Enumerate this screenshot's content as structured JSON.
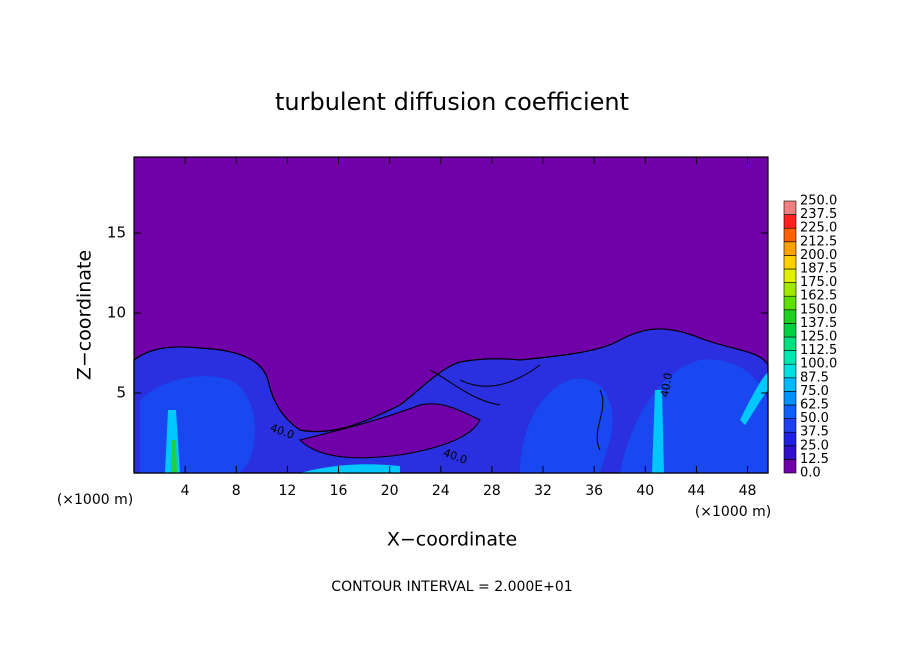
{
  "chart_data": {
    "type": "contour",
    "title": "turbulent diffusion coefficient",
    "xlabel": "X−coordinate",
    "ylabel": "Z−coordinate",
    "x_unit_left": "(×1000 m)",
    "x_unit_right": "(×1000 m)",
    "annotation": "CONTOUR INTERVAL = 2.000E+01",
    "xlim": [
      0,
      49.6
    ],
    "ylim": [
      0,
      19.75
    ],
    "xticks": [
      4,
      8,
      12,
      16,
      20,
      24,
      28,
      32,
      36,
      40,
      44,
      48
    ],
    "yticks": [
      5,
      10,
      15
    ],
    "contour_labels": [
      {
        "value": 40,
        "label": "40.0"
      },
      {
        "value": 40,
        "label": "40.0"
      },
      {
        "value": 40,
        "label": "40.0"
      }
    ],
    "colorbar": {
      "levels": [
        {
          "value": 0,
          "label": "0.0"
        },
        12.5,
        {
          "value": 25,
          "label": "25.0"
        },
        37.5,
        {
          "value": 50,
          "label": "50.0"
        },
        62.5,
        {
          "value": 75,
          "label": "75.0"
        },
        87.5,
        {
          "value": 100,
          "label": "100.0"
        },
        112.5,
        {
          "value": 125,
          "label": "125.0"
        },
        137.5,
        {
          "value": 150,
          "label": "150.0"
        },
        162.5,
        {
          "value": 175,
          "label": "175.0"
        },
        187.5,
        {
          "value": 200,
          "label": "200.0"
        },
        212.5,
        {
          "value": 225,
          "label": "225.0"
        },
        237.5,
        {
          "value": 250,
          "label": "250.0"
        }
      ],
      "colors": [
        "#7000a8",
        "#3010c8",
        "#2020e0",
        "#2040f0",
        "#1060ff",
        "#0090ff",
        "#00b8ff",
        "#00e0e0",
        "#00e8b0",
        "#00e080",
        "#00d040",
        "#20d020",
        "#60e000",
        "#a0e800",
        "#e0f000",
        "#ffd000",
        "#ffa000",
        "#ff6000",
        "#ff2020",
        "#f08080"
      ]
    }
  }
}
